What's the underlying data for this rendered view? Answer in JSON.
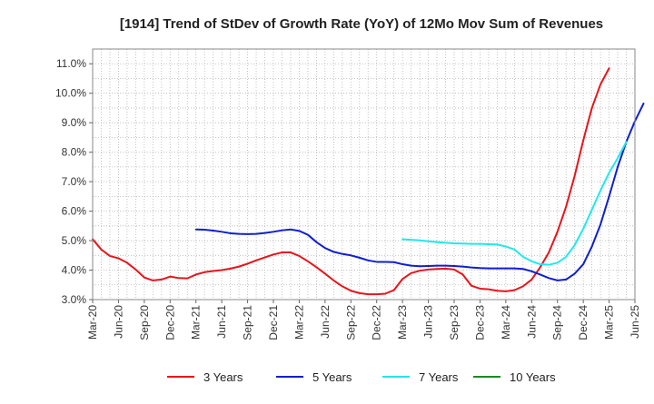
{
  "chart_data": {
    "type": "line",
    "title": "[1914]  Trend of StDev of Growth Rate (YoY) of 12Mo Mov Sum of Revenues",
    "xlabel": "",
    "ylabel": "",
    "ylim": [
      3.0,
      11.5
    ],
    "y_ticks": [
      3.0,
      4.0,
      5.0,
      6.0,
      7.0,
      8.0,
      9.0,
      10.0,
      11.0
    ],
    "y_tick_labels": [
      "3.0%",
      "4.0%",
      "5.0%",
      "6.0%",
      "7.0%",
      "8.0%",
      "9.0%",
      "10.0%",
      "11.0%"
    ],
    "x_tick_labels": [
      "Mar-20",
      "Jun-20",
      "Sep-20",
      "Dec-20",
      "Mar-21",
      "Jun-21",
      "Sep-21",
      "Dec-21",
      "Mar-22",
      "Jun-22",
      "Sep-22",
      "Dec-22",
      "Mar-23",
      "Jun-23",
      "Sep-23",
      "Dec-23",
      "Mar-24",
      "Jun-24",
      "Sep-24",
      "Dec-24",
      "Mar-25",
      "Jun-25"
    ],
    "x_range_months": [
      0,
      63
    ],
    "grid": true,
    "legend_position": "bottom",
    "series": [
      {
        "name": "3 Years",
        "color": "#e8141b",
        "start_month": 0,
        "values": [
          5.05,
          4.7,
          4.48,
          4.4,
          4.25,
          4.02,
          3.75,
          3.65,
          3.68,
          3.78,
          3.73,
          3.72,
          3.85,
          3.93,
          3.97,
          4.0,
          4.05,
          4.12,
          4.22,
          4.33,
          4.43,
          4.53,
          4.6,
          4.6,
          4.48,
          4.3,
          4.1,
          3.88,
          3.65,
          3.45,
          3.3,
          3.22,
          3.18,
          3.18,
          3.2,
          3.32,
          3.7,
          3.9,
          3.98,
          4.02,
          4.04,
          4.05,
          4.02,
          3.85,
          3.47,
          3.37,
          3.35,
          3.3,
          3.28,
          3.32,
          3.45,
          3.68,
          4.1,
          4.6,
          5.3,
          6.15,
          7.2,
          8.4,
          9.5,
          10.3,
          10.85
        ]
      },
      {
        "name": "5 Years",
        "color": "#0f1fcd",
        "start_month": 12,
        "values": [
          5.38,
          5.37,
          5.34,
          5.3,
          5.25,
          5.23,
          5.22,
          5.23,
          5.26,
          5.3,
          5.35,
          5.38,
          5.33,
          5.2,
          4.95,
          4.75,
          4.62,
          4.55,
          4.5,
          4.42,
          4.33,
          4.28,
          4.28,
          4.27,
          4.2,
          4.15,
          4.13,
          4.14,
          4.15,
          4.15,
          4.14,
          4.12,
          4.09,
          4.07,
          4.06,
          4.06,
          4.06,
          4.06,
          4.04,
          3.96,
          3.85,
          3.73,
          3.65,
          3.68,
          3.88,
          4.2,
          4.8,
          5.55,
          6.5,
          7.5,
          8.35,
          9.05,
          9.65
        ]
      },
      {
        "name": "7 Years",
        "color": "#22e8ea",
        "start_month": 36,
        "values": [
          5.05,
          5.03,
          5.01,
          4.98,
          4.95,
          4.93,
          4.91,
          4.9,
          4.89,
          4.89,
          4.88,
          4.87,
          4.8,
          4.7,
          4.45,
          4.3,
          4.2,
          4.18,
          4.25,
          4.45,
          4.85,
          5.4,
          6.05,
          6.7,
          7.3,
          7.8,
          8.35
        ]
      },
      {
        "name": "10 Years",
        "color": "#1a8a23",
        "start_month": 0,
        "values": []
      }
    ]
  }
}
